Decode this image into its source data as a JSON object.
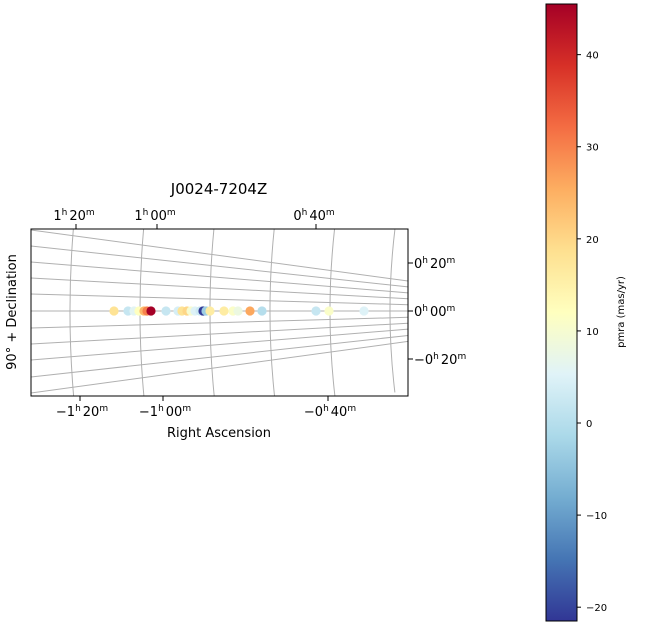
{
  "chart_data": {
    "type": "scatter",
    "title": "J0024-7204Z",
    "xlabel": "Right Ascension",
    "ylabel": "90° + Declination",
    "projection": "polar-celestial",
    "x_ticks_bottom": [
      {
        "h": "−1",
        "m": "20"
      },
      {
        "h": "−1",
        "m": "00"
      },
      {
        "h": "−0",
        "m": "40"
      }
    ],
    "x_ticks_top": [
      {
        "h": "1",
        "m": "20"
      },
      {
        "h": "1",
        "m": "00"
      },
      {
        "h": "0",
        "m": "40"
      }
    ],
    "y_ticks_right": [
      {
        "h": "0",
        "m": "20"
      },
      {
        "h": "0",
        "m": "00"
      },
      {
        "h": "−0",
        "m": "20"
      }
    ],
    "grid": true,
    "color_scale": {
      "label": "pmra (mas/yr)",
      "min": -21.5,
      "max": 45.5,
      "ticks": [
        -20,
        -10,
        0,
        10,
        20,
        30,
        40
      ],
      "colormap": "RdYlBu_r",
      "colors": [
        "#313695",
        "#4575b4",
        "#74add1",
        "#abd9e9",
        "#e0f3f8",
        "#ffffbf",
        "#fee090",
        "#fdae61",
        "#f46d43",
        "#d73027",
        "#a50026"
      ]
    },
    "points": [
      {
        "x": 114,
        "value": 18
      },
      {
        "x": 128,
        "value": 2
      },
      {
        "x": 134,
        "value": 6
      },
      {
        "x": 139,
        "value": 12
      },
      {
        "x": 144,
        "value": 24
      },
      {
        "x": 147,
        "value": 30
      },
      {
        "x": 151,
        "value": 46
      },
      {
        "x": 166,
        "value": 2
      },
      {
        "x": 178,
        "value": 4
      },
      {
        "x": 182,
        "value": 18
      },
      {
        "x": 187,
        "value": 20
      },
      {
        "x": 191,
        "value": 10
      },
      {
        "x": 195,
        "value": 5
      },
      {
        "x": 200,
        "value": 3
      },
      {
        "x": 203,
        "value": -21
      },
      {
        "x": 206,
        "value": -3
      },
      {
        "x": 210,
        "value": 16
      },
      {
        "x": 224,
        "value": 16
      },
      {
        "x": 233,
        "value": 11
      },
      {
        "x": 238,
        "value": 8
      },
      {
        "x": 250,
        "value": 26
      },
      {
        "x": 262,
        "value": 0
      },
      {
        "x": 316,
        "value": 2
      },
      {
        "x": 329,
        "value": 11
      },
      {
        "x": 364,
        "value": 5
      }
    ]
  }
}
